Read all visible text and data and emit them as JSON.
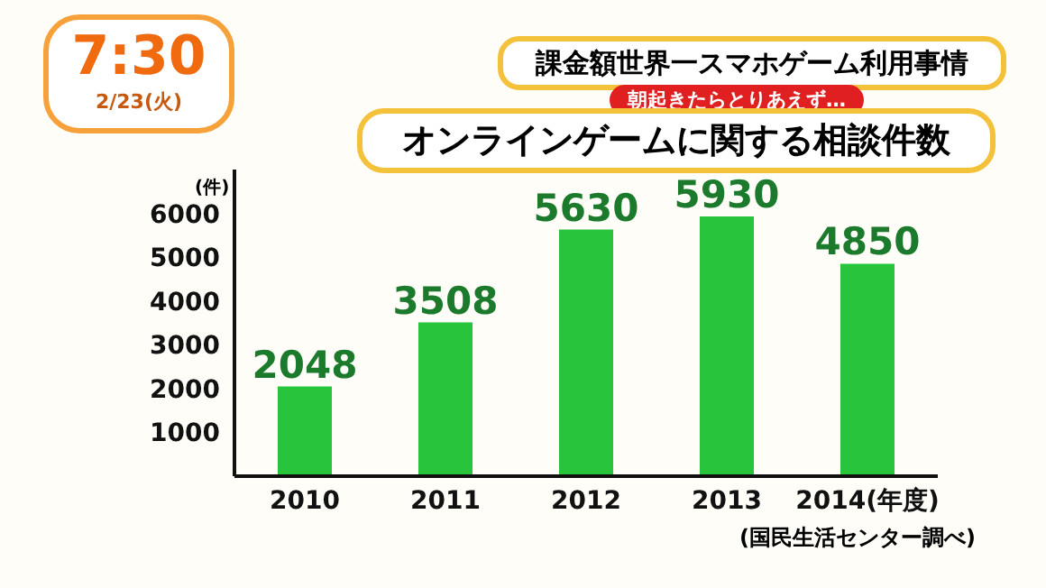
{
  "chart_data": {
    "type": "bar",
    "title": "オンラインゲームに関する相談件数",
    "subtitle": "課金額世界一スマホゲーム利用事情",
    "ylabel": "(件)",
    "annotations": [
      "朝起きたらとりあえず…",
      "7:30",
      "2/23(火)",
      "(国民生活センター調べ)"
    ],
    "categories": [
      "2010",
      "2011",
      "2012",
      "2013",
      "2014(年度)"
    ],
    "values": [
      2048,
      3508,
      5630,
      5930,
      4850
    ],
    "color": "#27c43c",
    "data_labels": true,
    "ylim": [
      0,
      7000
    ],
    "yticks": [
      1000,
      2000,
      3000,
      4000,
      5000,
      6000
    ],
    "grid": false,
    "legend": false
  }
}
